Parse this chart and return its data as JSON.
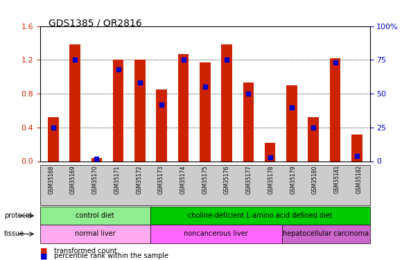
{
  "title": "GDS1385 / OR2816",
  "samples": [
    "GSM35168",
    "GSM35169",
    "GSM35170",
    "GSM35171",
    "GSM35172",
    "GSM35173",
    "GSM35174",
    "GSM35175",
    "GSM35176",
    "GSM35177",
    "GSM35178",
    "GSM35179",
    "GSM35180",
    "GSM35181",
    "GSM35182"
  ],
  "red_values": [
    0.52,
    1.38,
    0.04,
    1.2,
    1.2,
    0.85,
    1.27,
    1.17,
    1.38,
    0.93,
    0.22,
    0.9,
    0.52,
    1.22,
    0.32
  ],
  "blue_values": [
    25,
    75,
    2,
    68,
    58,
    42,
    75,
    55,
    75,
    50,
    3,
    40,
    25,
    73,
    4
  ],
  "ylim_left": [
    0,
    1.6
  ],
  "ylim_right": [
    0,
    100
  ],
  "yticks_left": [
    0,
    0.4,
    0.8,
    1.2,
    1.6
  ],
  "yticks_right": [
    0,
    25,
    50,
    75,
    100
  ],
  "ytick_labels_right": [
    "0",
    "25",
    "50",
    "75",
    "100%"
  ],
  "protocol_groups": [
    {
      "label": "control diet",
      "start": 0,
      "end": 4,
      "color": "#90EE90"
    },
    {
      "label": "choline-deficient L-amino acid defined diet",
      "start": 5,
      "end": 14,
      "color": "#00CC00"
    }
  ],
  "tissue_groups": [
    {
      "label": "normal liver",
      "start": 0,
      "end": 4,
      "color": "#FF99FF"
    },
    {
      "label": "noncancerous liver",
      "start": 5,
      "end": 10,
      "color": "#FF66FF"
    },
    {
      "label": "hepatocellular carcinoma",
      "start": 11,
      "end": 14,
      "color": "#CC66CC"
    }
  ],
  "bar_width": 0.5,
  "red_color": "#CC2200",
  "blue_color": "#0000CC",
  "bg_color": "#FFFFFF",
  "grid_color": "#000000",
  "tick_label_color_left": "#CC2200",
  "tick_label_color_right": "#0000CC",
  "left_label": "protocol",
  "tissue_label": "tissue",
  "legend_red": "transformed count",
  "legend_blue": "percentile rank within the sample",
  "bar_bg_color": "#DDDDDD"
}
